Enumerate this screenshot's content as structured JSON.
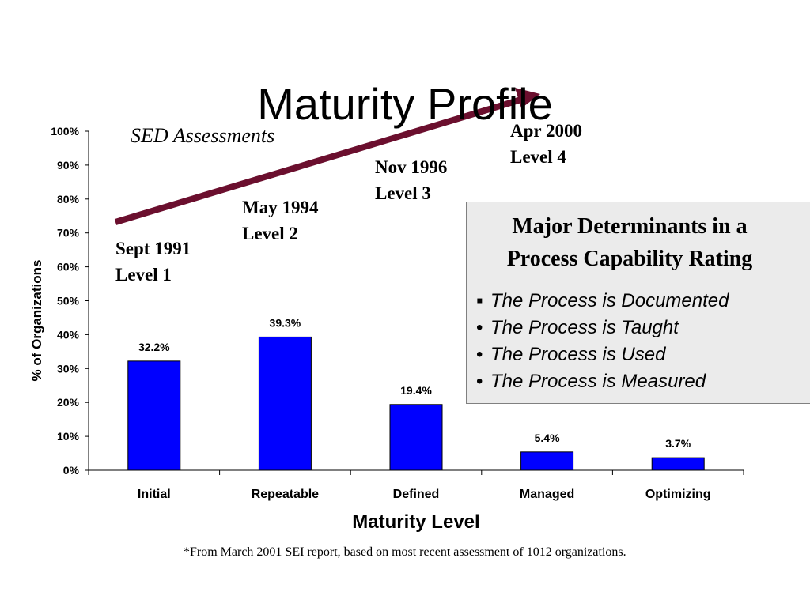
{
  "slide": {
    "title": "Maturity Profile",
    "sed_label": "SED Assessments",
    "milestones": [
      {
        "date": "Sept 1991",
        "level": "Level 1"
      },
      {
        "date": "May 1994",
        "level": "Level 2"
      },
      {
        "date": "Nov 1996",
        "level": "Level 3"
      },
      {
        "date": "Apr 2000",
        "level": "Level 4"
      }
    ],
    "determinants": {
      "heading_line1": "Major Determinants in a",
      "heading_line2": "Process Capability Rating",
      "bullets": [
        {
          "marker": "▪",
          "text": "The Process is Documented"
        },
        {
          "marker": "•",
          "text": "The Process is Taught"
        },
        {
          "marker": "•",
          "text": "The Process is Used"
        },
        {
          "marker": "•",
          "text": "The Process is Measured"
        }
      ]
    },
    "footnote": "*From March 2001 SEI report, based on most recent assessment of 1012 organizations.",
    "colors": {
      "bar": "#0000ff",
      "arrow": "#6b0f2e",
      "box": "#ebebeb"
    }
  },
  "chart_data": {
    "type": "bar",
    "categories": [
      "Initial",
      "Repeatable",
      "Defined",
      "Managed",
      "Optimizing"
    ],
    "values": [
      32.2,
      39.3,
      19.4,
      5.4,
      3.7
    ],
    "data_labels": [
      "32.2%",
      "39.3%",
      "19.4%",
      "5.4%",
      "3.7%"
    ],
    "xlabel": "Maturity Level",
    "ylabel": "% of Organizations",
    "ylim": [
      0,
      100
    ],
    "yticks": [
      "0%",
      "10%",
      "20%",
      "30%",
      "40%",
      "50%",
      "60%",
      "70%",
      "80%",
      "90%",
      "100%"
    ],
    "grid": false,
    "legend": "none"
  }
}
